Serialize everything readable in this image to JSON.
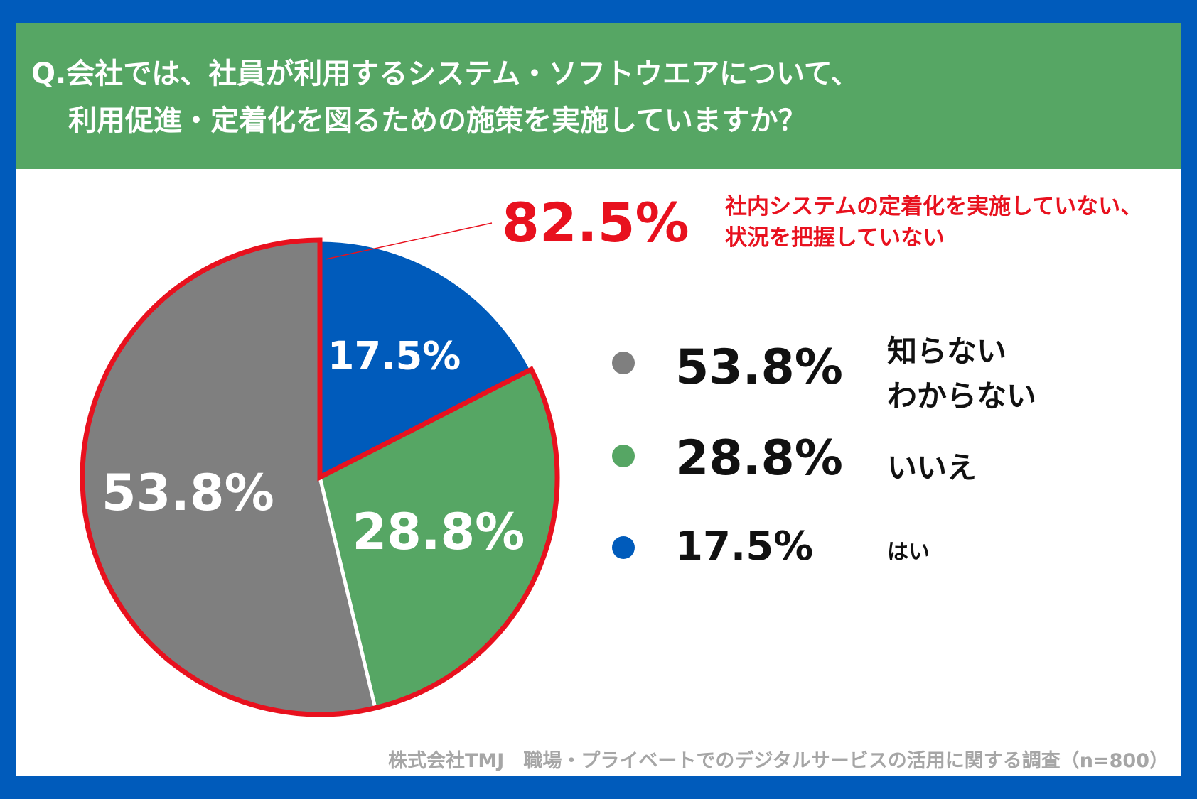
{
  "title": {
    "line1": "Q.会社では、社員が利用するシステム・ソフトウエアについて、",
    "line2": "利用促進・定着化を図るための施策を実施していますか？"
  },
  "callout": {
    "value": "82.5%",
    "note_line1": "社内システムの定着化を実施していない、",
    "note_line2": "状況を把握していない"
  },
  "legend": [
    {
      "value": "53.8%",
      "label": "知らない\nわからない",
      "color": "#7F7F7F"
    },
    {
      "value": "28.8%",
      "label": "いいえ",
      "color": "#56A664"
    },
    {
      "value": "17.5%",
      "label": "はい",
      "color": "#005BBB"
    }
  ],
  "footer": "株式会社TMJ　職場・プライベートでのデジタルサービスの活用に関する調査（n=800）",
  "colors": {
    "accent_red": "#E8111E",
    "header_green": "#56A664",
    "border_blue": "#005BBB",
    "footer_gray": "#A6A6A6"
  },
  "chart_data": {
    "type": "pie",
    "title": "Q.会社では、社員が利用するシステム・ソフトウエアについて、利用促進・定着化を図るための施策を実施していますか？",
    "categories": [
      "はい",
      "いいえ",
      "知らない わからない"
    ],
    "values": [
      17.5,
      28.8,
      53.8
    ],
    "labels": [
      "17.5%",
      "28.8%",
      "53.8%"
    ],
    "colors": [
      "#005BBB",
      "#56A664",
      "#7F7F7F"
    ],
    "start_angle_deg": 0,
    "direction": "clockwise",
    "highlight": {
      "slices": [
        "いいえ",
        "知らない わからない"
      ],
      "value": "82.5%",
      "outline_color": "#E8111E"
    },
    "legend_position": "right"
  }
}
